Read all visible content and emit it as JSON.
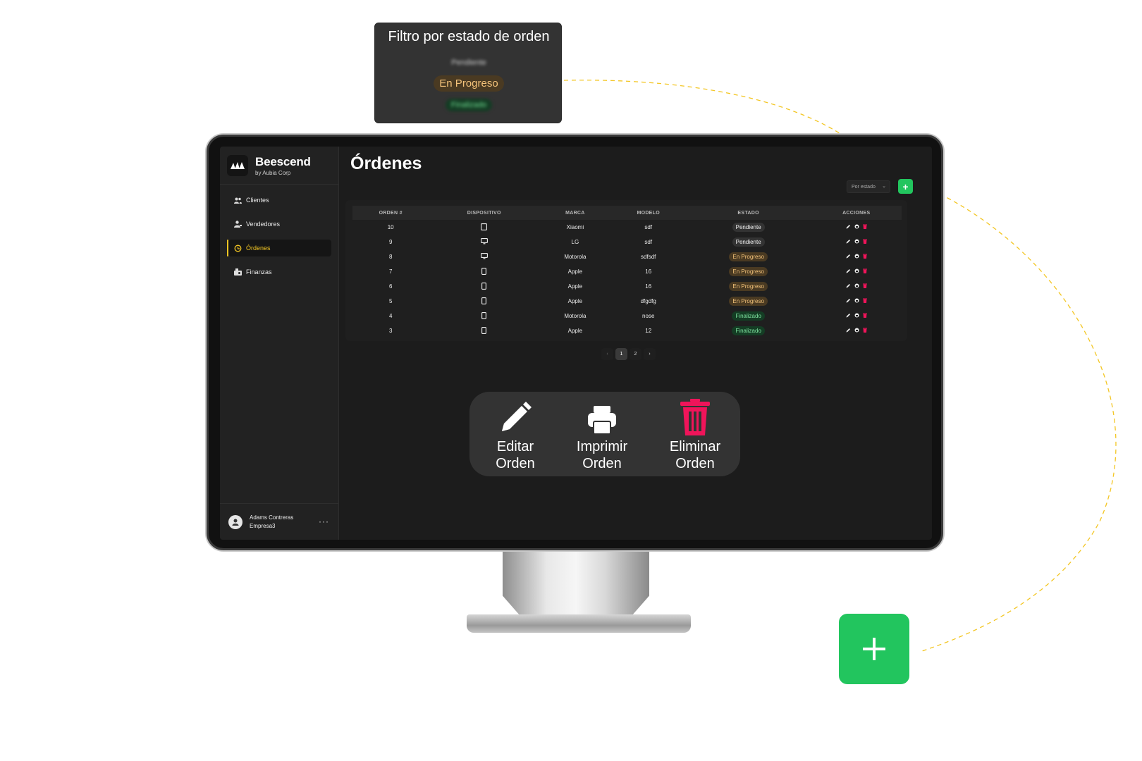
{
  "filter_popup": {
    "title": "Filtro por estado de orden",
    "options": [
      "Pendiente",
      "En Progreso",
      "Finalizado"
    ]
  },
  "brand": {
    "name": "Beescend",
    "subtitle": "by Aubia Corp"
  },
  "sidebar": {
    "items": [
      {
        "label": "Clientes",
        "icon": "users-icon"
      },
      {
        "label": "Vendedores",
        "icon": "user-tie-icon"
      },
      {
        "label": "Órdenes",
        "icon": "orders-icon",
        "active": true
      },
      {
        "label": "Finanzas",
        "icon": "finance-icon"
      }
    ]
  },
  "user": {
    "name": "Adams Contreras",
    "company": "Empresa3",
    "more": "···"
  },
  "main": {
    "title": "Órdenes",
    "filter_label": "Por estado",
    "add_label": "+"
  },
  "table": {
    "headers": [
      "ORDEN #",
      "DISPOSITIVO",
      "MARCA",
      "MODELO",
      "ESTADO",
      "ACCIONES"
    ],
    "rows": [
      {
        "orden": "10",
        "device": "tablet",
        "marca": "Xiaomi",
        "modelo": "sdf",
        "estado": "Pendiente"
      },
      {
        "orden": "9",
        "device": "monitor",
        "marca": "LG",
        "modelo": "sdf",
        "estado": "Pendiente"
      },
      {
        "orden": "8",
        "device": "monitor",
        "marca": "Motorola",
        "modelo": "sdfsdf",
        "estado": "En Progreso"
      },
      {
        "orden": "7",
        "device": "phone",
        "marca": "Apple",
        "modelo": "16",
        "estado": "En Progreso"
      },
      {
        "orden": "6",
        "device": "phone",
        "marca": "Apple",
        "modelo": "16",
        "estado": "En Progreso"
      },
      {
        "orden": "5",
        "device": "phone",
        "marca": "Apple",
        "modelo": "dfgdfg",
        "estado": "En Progreso"
      },
      {
        "orden": "4",
        "device": "phone",
        "marca": "Motorola",
        "modelo": "nose",
        "estado": "Finalizado"
      },
      {
        "orden": "3",
        "device": "phone",
        "marca": "Apple",
        "modelo": "12",
        "estado": "Finalizado"
      }
    ]
  },
  "pagination": {
    "prev": "‹",
    "pages": [
      "1",
      "2"
    ],
    "next": "›",
    "current": "1"
  },
  "actions_popup": {
    "edit": {
      "line1": "Editar",
      "line2": "Orden"
    },
    "print": {
      "line1": "Imprimir",
      "line2": "Orden"
    },
    "delete": {
      "line1": "Eliminar",
      "line2": "Orden"
    }
  },
  "colors": {
    "accent": "#f3c623",
    "green": "#22c55e",
    "danger": "#f0145a",
    "progress_text": "#f3c27a",
    "finished_text": "#7fe3a0"
  }
}
